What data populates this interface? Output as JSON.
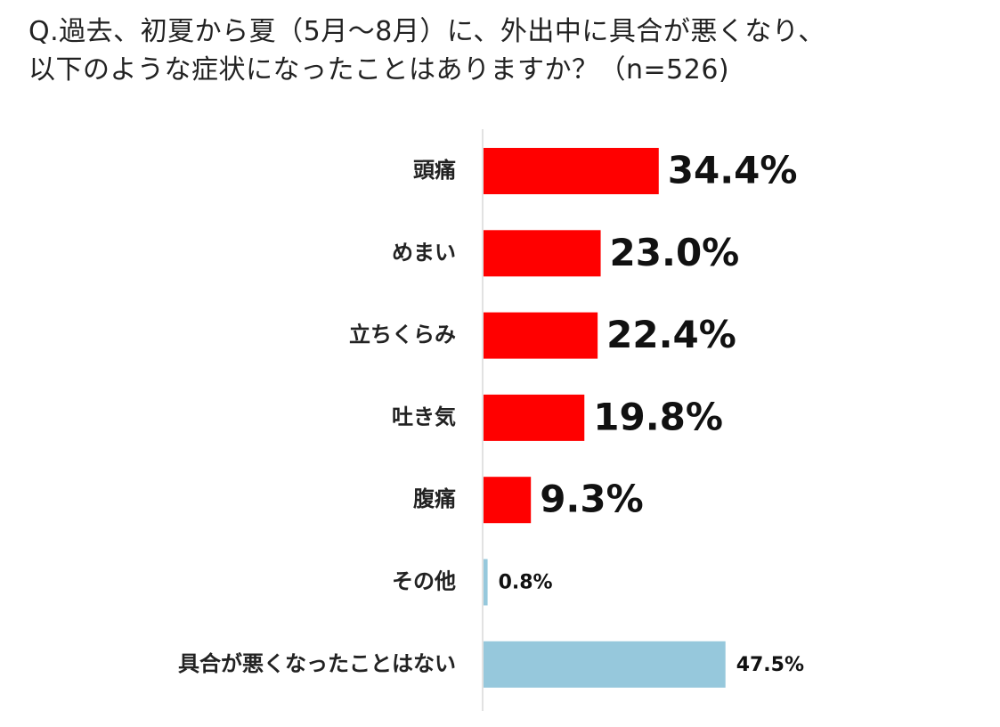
{
  "title": {
    "line1": "Q.過去、初夏から夏（5月～8月）に、外出中に具合が悪くなり、",
    "line2": "以下のような症状になったことはありますか？（n=526)"
  },
  "chart_data": {
    "type": "bar",
    "orientation": "horizontal",
    "unit": "%",
    "categories": [
      "頭痛",
      "めまい",
      "立ちくらみ",
      "吐き気",
      "腹痛",
      "その他",
      "具合が悪くなったことはない"
    ],
    "values": [
      34.4,
      23.0,
      22.4,
      19.8,
      9.3,
      0.8,
      47.5
    ],
    "labels": [
      "34.4%",
      "23.0%",
      "22.4%",
      "19.8%",
      "9.3%",
      "0.8%",
      "47.5%"
    ],
    "colors": [
      "#ff0000",
      "#ff0000",
      "#ff0000",
      "#ff0000",
      "#ff0000",
      "#96c8dc",
      "#96c8dc"
    ],
    "xlim": [
      0,
      100
    ],
    "grid": false,
    "legend": "none"
  }
}
